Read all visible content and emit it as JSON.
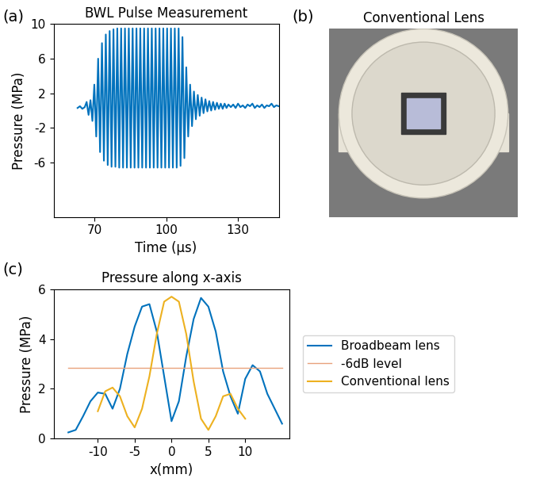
{
  "chart_data": [
    {
      "type": "line",
      "panel": "(a)",
      "title": "BWL Pulse Measurement",
      "x_label": "Time (μs)",
      "y_label": "Pressure (MPa)",
      "xlim": [
        53,
        147
      ],
      "ylim": [
        -12.3,
        10
      ],
      "xticks": [
        70,
        100,
        130
      ],
      "yticks": [
        -6,
        -2,
        2,
        6,
        10
      ],
      "grid": false,
      "series": [
        {
          "color": "#0072BD",
          "x": [
            63.0,
            64.0,
            65.0,
            66.0,
            66.8,
            67.6,
            68.4,
            69.2,
            70.0,
            70.8,
            71.6,
            72.4,
            73.2,
            74.0,
            74.8,
            75.6,
            76.4,
            77.2,
            78.0,
            78.8,
            79.6,
            80.4,
            81.2,
            82.0,
            82.8,
            83.6,
            84.4,
            85.2,
            86.0,
            86.8,
            87.6,
            88.4,
            89.2,
            90.0,
            90.8,
            91.6,
            92.4,
            93.2,
            94.0,
            94.8,
            95.6,
            96.4,
            97.2,
            98.0,
            98.8,
            99.6,
            100.4,
            101.2,
            102.0,
            102.8,
            103.6,
            104.4,
            105.2,
            106.0,
            106.8,
            107.6,
            108.4,
            109.2,
            110.0,
            110.8,
            111.6,
            112.4,
            113.2,
            114.0,
            114.8,
            115.6,
            116.4,
            117.2,
            118.0,
            118.8,
            119.6,
            120.4,
            121.2,
            122.0,
            122.8,
            123.6,
            124.4,
            125.2,
            126.0,
            127.0,
            128.0,
            129.0,
            130.0,
            131.0,
            132.0,
            133.0,
            134.0,
            135.0,
            136.0,
            137.0,
            138.0,
            139.0,
            140.0,
            141.0,
            142.0,
            143.0,
            144.0,
            145.0,
            146.0,
            147.0,
            148.0
          ],
          "values": [
            0.3,
            0.5,
            0.2,
            0.4,
            1.0,
            -0.5,
            1.2,
            -1.2,
            3.0,
            -3.0,
            6.0,
            -4.8,
            7.8,
            -5.8,
            8.8,
            -6.3,
            9.2,
            -6.5,
            9.4,
            -6.5,
            9.5,
            -6.6,
            9.5,
            -6.6,
            9.5,
            -6.6,
            9.5,
            -6.6,
            9.5,
            -6.6,
            9.5,
            -6.6,
            9.5,
            -6.6,
            9.5,
            -6.6,
            9.5,
            -6.6,
            9.5,
            -6.6,
            9.5,
            -6.6,
            9.5,
            -6.6,
            9.5,
            -6.6,
            9.5,
            -6.6,
            9.5,
            -6.6,
            9.5,
            -6.6,
            9.5,
            -6.4,
            8.5,
            -5.5,
            5.0,
            -3.0,
            3.0,
            -1.8,
            2.2,
            -1.0,
            1.8,
            -0.6,
            1.5,
            -0.3,
            1.3,
            -0.1,
            1.1,
            0.0,
            1.0,
            0.1,
            0.9,
            0.2,
            0.8,
            0.2,
            0.8,
            0.3,
            0.7,
            0.4,
            0.7,
            0.3,
            0.8,
            0.4,
            0.6,
            0.3,
            0.7,
            0.5,
            0.8,
            0.3,
            0.6,
            0.4,
            0.7,
            0.3,
            0.6,
            0.5,
            0.8,
            0.4,
            0.6,
            0.5,
            0.6
          ]
        }
      ]
    },
    {
      "type": "image",
      "panel": "(b)",
      "title": "Conventional Lens"
    },
    {
      "type": "line",
      "panel": "(c)",
      "title": "Pressure along x-axis",
      "x_label": "x(mm)",
      "y_label": "Pressure (MPa)",
      "xlim": [
        -16,
        16
      ],
      "ylim": [
        0,
        6
      ],
      "xticks": [
        -10,
        -5,
        0,
        5,
        10
      ],
      "yticks": [
        0,
        2,
        4,
        6
      ],
      "grid": false,
      "legend": "center left",
      "series": [
        {
          "name": "Broadbeam lens",
          "color": "#0072BD",
          "x": [
            -14,
            -13,
            -12,
            -11,
            -10,
            -9,
            -8,
            -7,
            -6,
            -5,
            -4,
            -3,
            -2,
            -1,
            0,
            1,
            2,
            3,
            4,
            5,
            6,
            7,
            8,
            9,
            10,
            11,
            12,
            13,
            14,
            15
          ],
          "values": [
            0.25,
            0.35,
            0.9,
            1.5,
            1.85,
            1.8,
            1.2,
            2.0,
            3.4,
            4.5,
            5.3,
            5.4,
            4.3,
            2.5,
            0.7,
            1.5,
            3.3,
            4.8,
            5.65,
            5.3,
            4.3,
            2.7,
            1.7,
            1.0,
            2.4,
            2.95,
            2.7,
            1.8,
            1.2,
            0.6
          ]
        },
        {
          "name": "-6dB level",
          "color": "#E8A27C",
          "x": [
            -14,
            15
          ],
          "values": [
            2.85,
            2.85
          ]
        },
        {
          "name": "Conventional lens",
          "color": "#EDB120",
          "x": [
            -10,
            -9.5,
            -9,
            -8,
            -7,
            -6,
            -5,
            -4,
            -3,
            -2,
            -1,
            0,
            1,
            2,
            3,
            4,
            5,
            6,
            7,
            8,
            9,
            10
          ],
          "values": [
            1.1,
            1.5,
            1.9,
            2.05,
            1.7,
            0.9,
            0.45,
            1.2,
            2.5,
            4.2,
            5.5,
            5.7,
            5.5,
            4.2,
            2.3,
            0.8,
            0.35,
            0.9,
            1.7,
            1.8,
            1.2,
            0.8
          ]
        }
      ]
    }
  ]
}
